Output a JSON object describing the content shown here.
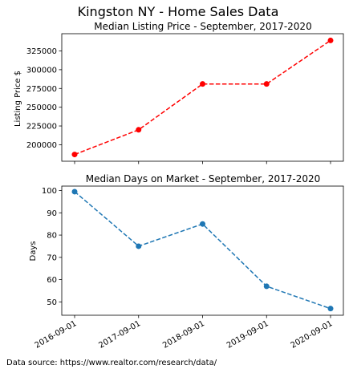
{
  "figure": {
    "suptitle": "Kingston NY - Home Sales Data",
    "source_note": "Data source: https://www.realtor.com/research/data/"
  },
  "chart_data": [
    {
      "type": "line",
      "title": "Median Listing Price - September, 2017-2020",
      "xlabel": "",
      "ylabel": "Listing Price $",
      "x": [
        "2016-09-01",
        "2017-09-01",
        "2018-09-01",
        "2019-09-01",
        "2020-09-01"
      ],
      "series": [
        {
          "name": "Median Listing Price",
          "values": [
            187000,
            219900,
            281000,
            281000,
            339000
          ],
          "color": "#ff0000",
          "linestyle": "dashed",
          "marker": "circle"
        }
      ],
      "yticks": [
        200000,
        225000,
        250000,
        275000,
        300000,
        325000
      ],
      "ylim": [
        178000,
        348000
      ],
      "show_xticklabels": false,
      "grid": false
    },
    {
      "type": "line",
      "title": "Median Days on Market - September, 2017-2020",
      "xlabel": "",
      "ylabel": "Days",
      "x": [
        "2016-09-01",
        "2017-09-01",
        "2018-09-01",
        "2019-09-01",
        "2020-09-01"
      ],
      "series": [
        {
          "name": "Median Days on Market",
          "values": [
            99.5,
            75,
            85,
            57,
            47
          ],
          "color": "#1f77b4",
          "linestyle": "dashed",
          "marker": "circle"
        }
      ],
      "yticks": [
        50,
        60,
        70,
        80,
        90,
        100
      ],
      "ylim": [
        44,
        102
      ],
      "show_xticklabels": true,
      "grid": false
    }
  ]
}
